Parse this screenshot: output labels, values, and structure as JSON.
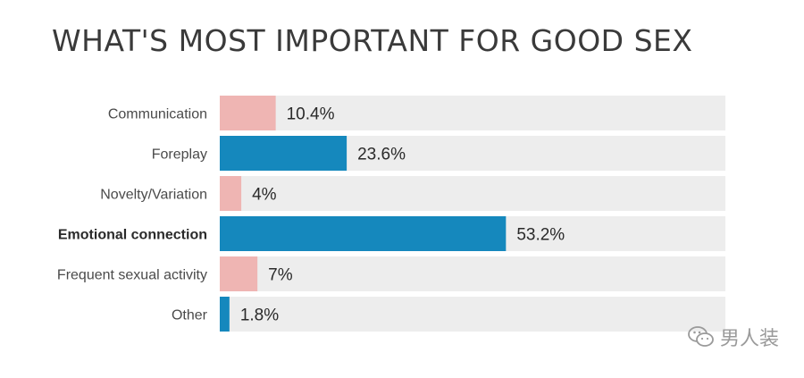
{
  "chart_data": {
    "type": "bar",
    "orientation": "horizontal",
    "title": "WHAT'S MOST IMPORTANT FOR GOOD SEX",
    "categories": [
      "Communication",
      "Foreplay",
      "Novelty/Variation",
      "Emotional connection",
      "Frequent sexual activity",
      "Other"
    ],
    "values": [
      10.4,
      23.6,
      4,
      53.2,
      7,
      1.8
    ],
    "value_labels": [
      "10.4%",
      "23.6%",
      "4%",
      "53.2%",
      "7%",
      "1.8%"
    ],
    "highlighted_category": "Emotional connection",
    "xlim": [
      0,
      94
    ],
    "bar_colors": [
      "#efb5b3",
      "#1588bd",
      "#efb5b3",
      "#1588bd",
      "#efb5b3",
      "#1588bd"
    ],
    "track_color": "#ededed",
    "grid": false
  },
  "watermark": {
    "text": "男人装",
    "icon": "wechat-icon"
  }
}
